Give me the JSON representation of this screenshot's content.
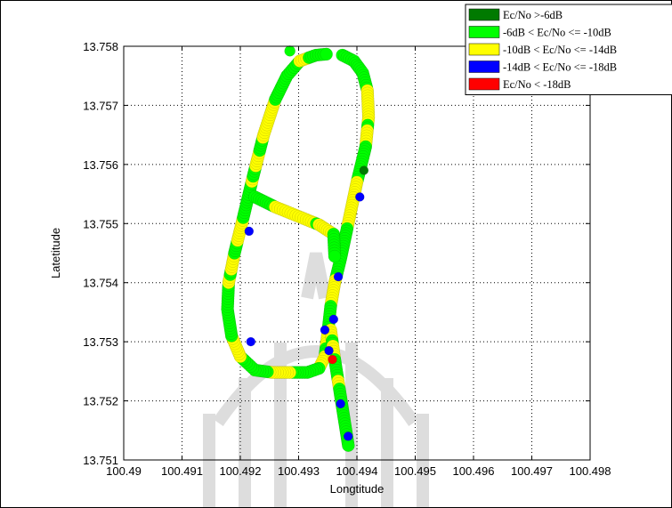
{
  "chart_data": {
    "type": "scatter",
    "title": "",
    "xlabel": "Longtitude",
    "ylabel": "Latetitude",
    "xlim": [
      100.49,
      100.498
    ],
    "ylim": [
      13.751,
      13.758
    ],
    "xticks": [
      "100.49",
      "100.491",
      "100.492",
      "100.493",
      "100.494",
      "100.495",
      "100.496",
      "100.497",
      "100.498"
    ],
    "yticks": [
      "13.751",
      "13.752",
      "13.753",
      "13.754",
      "13.755",
      "13.756",
      "13.757",
      "13.758"
    ],
    "grid": true,
    "legend_position": "top-right",
    "series": [
      {
        "name": "Ec/No >-6dB",
        "color": "#007a00"
      },
      {
        "name": "-6dB < Ec/No <= -10dB",
        "color": "#00ff00"
      },
      {
        "name": "-10dB < Ec/No <= -14dB",
        "color": "#ffff00"
      },
      {
        "name": "-14dB < Ec/No <= -18dB",
        "color": "#0000ff"
      },
      {
        "name": "Ec/No < -18dB",
        "color": "#ff0000"
      }
    ],
    "path": [
      [
        100.49375,
        13.75785
      ],
      [
        100.49395,
        13.75775
      ],
      [
        100.4941,
        13.75755
      ],
      [
        100.49418,
        13.75725
      ],
      [
        100.4942,
        13.7568
      ],
      [
        100.49415,
        13.7563
      ],
      [
        100.494,
        13.7557
      ],
      [
        100.49385,
        13.755
      ],
      [
        100.49372,
        13.7544
      ],
      [
        100.49362,
        13.754
      ],
      [
        100.49355,
        13.7536
      ],
      [
        100.4935,
        13.75315
      ],
      [
        100.49345,
        13.75275
      ],
      [
        100.49335,
        13.75255
      ],
      [
        100.49315,
        13.75248
      ],
      [
        100.49285,
        13.75248
      ],
      [
        100.49255,
        13.75248
      ],
      [
        100.49225,
        13.75252
      ],
      [
        100.492,
        13.75275
      ],
      [
        100.49185,
        13.7531
      ],
      [
        100.49178,
        13.75355
      ],
      [
        100.4918,
        13.754
      ],
      [
        100.4919,
        13.7545
      ],
      [
        100.49205,
        13.7551
      ],
      [
        100.49222,
        13.7558
      ],
      [
        100.4924,
        13.7565
      ],
      [
        100.4926,
        13.7571
      ],
      [
        100.4928,
        13.7575
      ],
      [
        100.49302,
        13.75775
      ],
      [
        100.4933,
        13.75785
      ],
      [
        100.49352,
        13.75787
      ]
    ],
    "connector": [
      [
        100.49225,
        13.75545
      ],
      [
        100.4926,
        13.75528
      ],
      [
        100.493,
        13.75512
      ],
      [
        100.49335,
        13.75498
      ],
      [
        100.4936,
        13.75482
      ],
      [
        100.49362,
        13.7544
      ]
    ],
    "tail": [
      [
        100.49355,
        13.7532
      ],
      [
        100.49362,
        13.7527
      ],
      [
        100.4937,
        13.7522
      ],
      [
        100.49378,
        13.7517
      ],
      [
        100.49386,
        13.7512
      ]
    ],
    "stray": [
      {
        "x": 100.49285,
        "y": 13.75792,
        "level": 1
      }
    ],
    "highlights": [
      {
        "x": 100.49345,
        "y": 13.7532,
        "level": 3
      },
      {
        "x": 100.49352,
        "y": 13.75285,
        "level": 3
      },
      {
        "x": 100.49358,
        "y": 13.7527,
        "level": 4
      },
      {
        "x": 100.4936,
        "y": 13.75338,
        "level": 3
      },
      {
        "x": 100.49368,
        "y": 13.7541,
        "level": 3
      },
      {
        "x": 100.49372,
        "y": 13.75195,
        "level": 3
      },
      {
        "x": 100.49385,
        "y": 13.7514,
        "level": 3
      },
      {
        "x": 100.49215,
        "y": 13.75487,
        "level": 3
      },
      {
        "x": 100.49218,
        "y": 13.753,
        "level": 3
      },
      {
        "x": 100.49412,
        "y": 13.7559,
        "level": 0
      },
      {
        "x": 100.49405,
        "y": 13.75545,
        "level": 3
      }
    ]
  }
}
